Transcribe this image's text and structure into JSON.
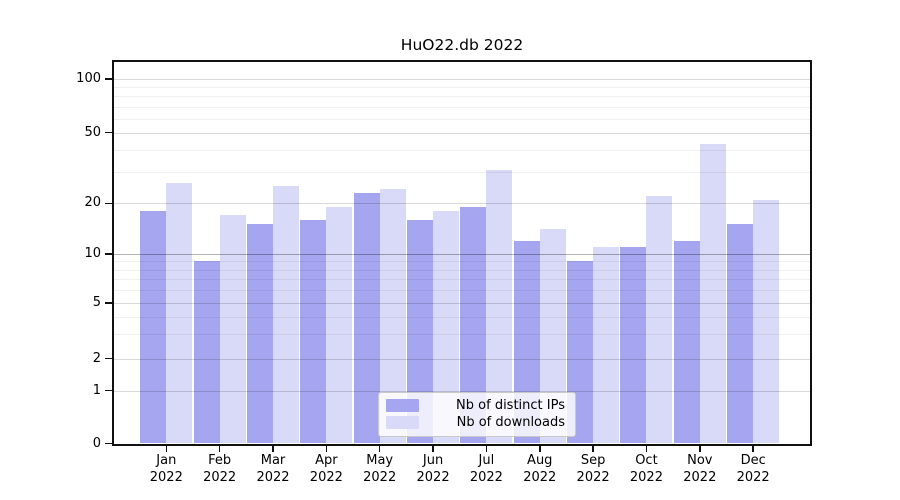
{
  "chart_data": {
    "type": "bar",
    "title": "HuO22.db 2022",
    "categories": [
      "Jan",
      "Feb",
      "Mar",
      "Apr",
      "May",
      "Jun",
      "Jul",
      "Aug",
      "Sep",
      "Oct",
      "Nov",
      "Dec"
    ],
    "x_tick_year": "2022",
    "series": [
      {
        "name": "Nb of distinct IPs",
        "color": "#a5a5f0",
        "values": [
          18,
          9,
          15,
          16,
          23,
          16,
          19,
          12,
          9,
          11,
          12,
          15
        ]
      },
      {
        "name": "Nb of downloads",
        "color": "#d9d9f8",
        "values": [
          26,
          17,
          25,
          19,
          24,
          18,
          31,
          14,
          11,
          22,
          43,
          21
        ]
      }
    ],
    "yscale": "symlog-like (log spacing above 1, linear 0-1)",
    "ylim": [
      0,
      125
    ],
    "y_major_ticks": [
      0,
      1,
      2,
      5,
      10,
      20,
      50,
      100
    ],
    "y_minor_ticks": [
      3,
      4,
      6,
      7,
      8,
      9,
      30,
      40,
      60,
      70,
      80,
      90
    ],
    "grid": true,
    "legend_position": "inside-bottom-center"
  }
}
